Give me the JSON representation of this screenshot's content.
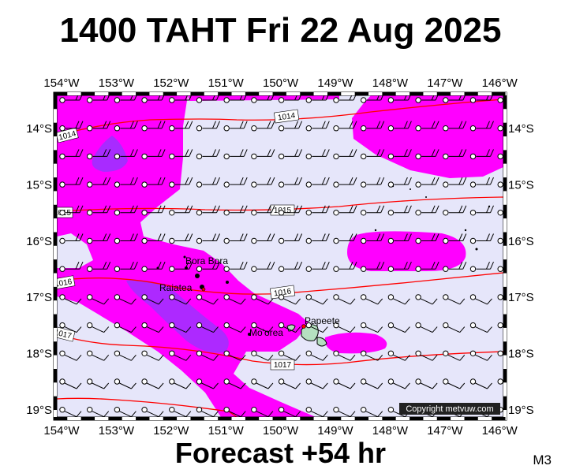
{
  "title": "1400 TAHT Fri 22 Aug 2025",
  "forecast": "Forecast +54 hr",
  "model_tag": "M3",
  "copyright": "Copyright metvuw.com",
  "lon_ticks": [
    "154°W",
    "153°W",
    "152°W",
    "151°W",
    "150°W",
    "149°W",
    "148°W",
    "147°W",
    "146°W"
  ],
  "lat_ticks": [
    "14°S",
    "15°S",
    "16°S",
    "17°S",
    "18°S",
    "19°S"
  ],
  "places": [
    {
      "name": "Bora Bora"
    },
    {
      "name": "Raiatea"
    },
    {
      "name": "Mo'orea"
    },
    {
      "name": "Papeete"
    }
  ],
  "isobars": [
    "1014",
    "1014",
    "1015",
    "1015",
    "1016",
    "1016",
    "1017",
    "1017"
  ],
  "colors": {
    "ocean": "#e6e6fa",
    "rain_light": "#ff00ff",
    "rain_heavy": "#9933ff",
    "isobar": "#ff0000",
    "frame": "#000000"
  }
}
